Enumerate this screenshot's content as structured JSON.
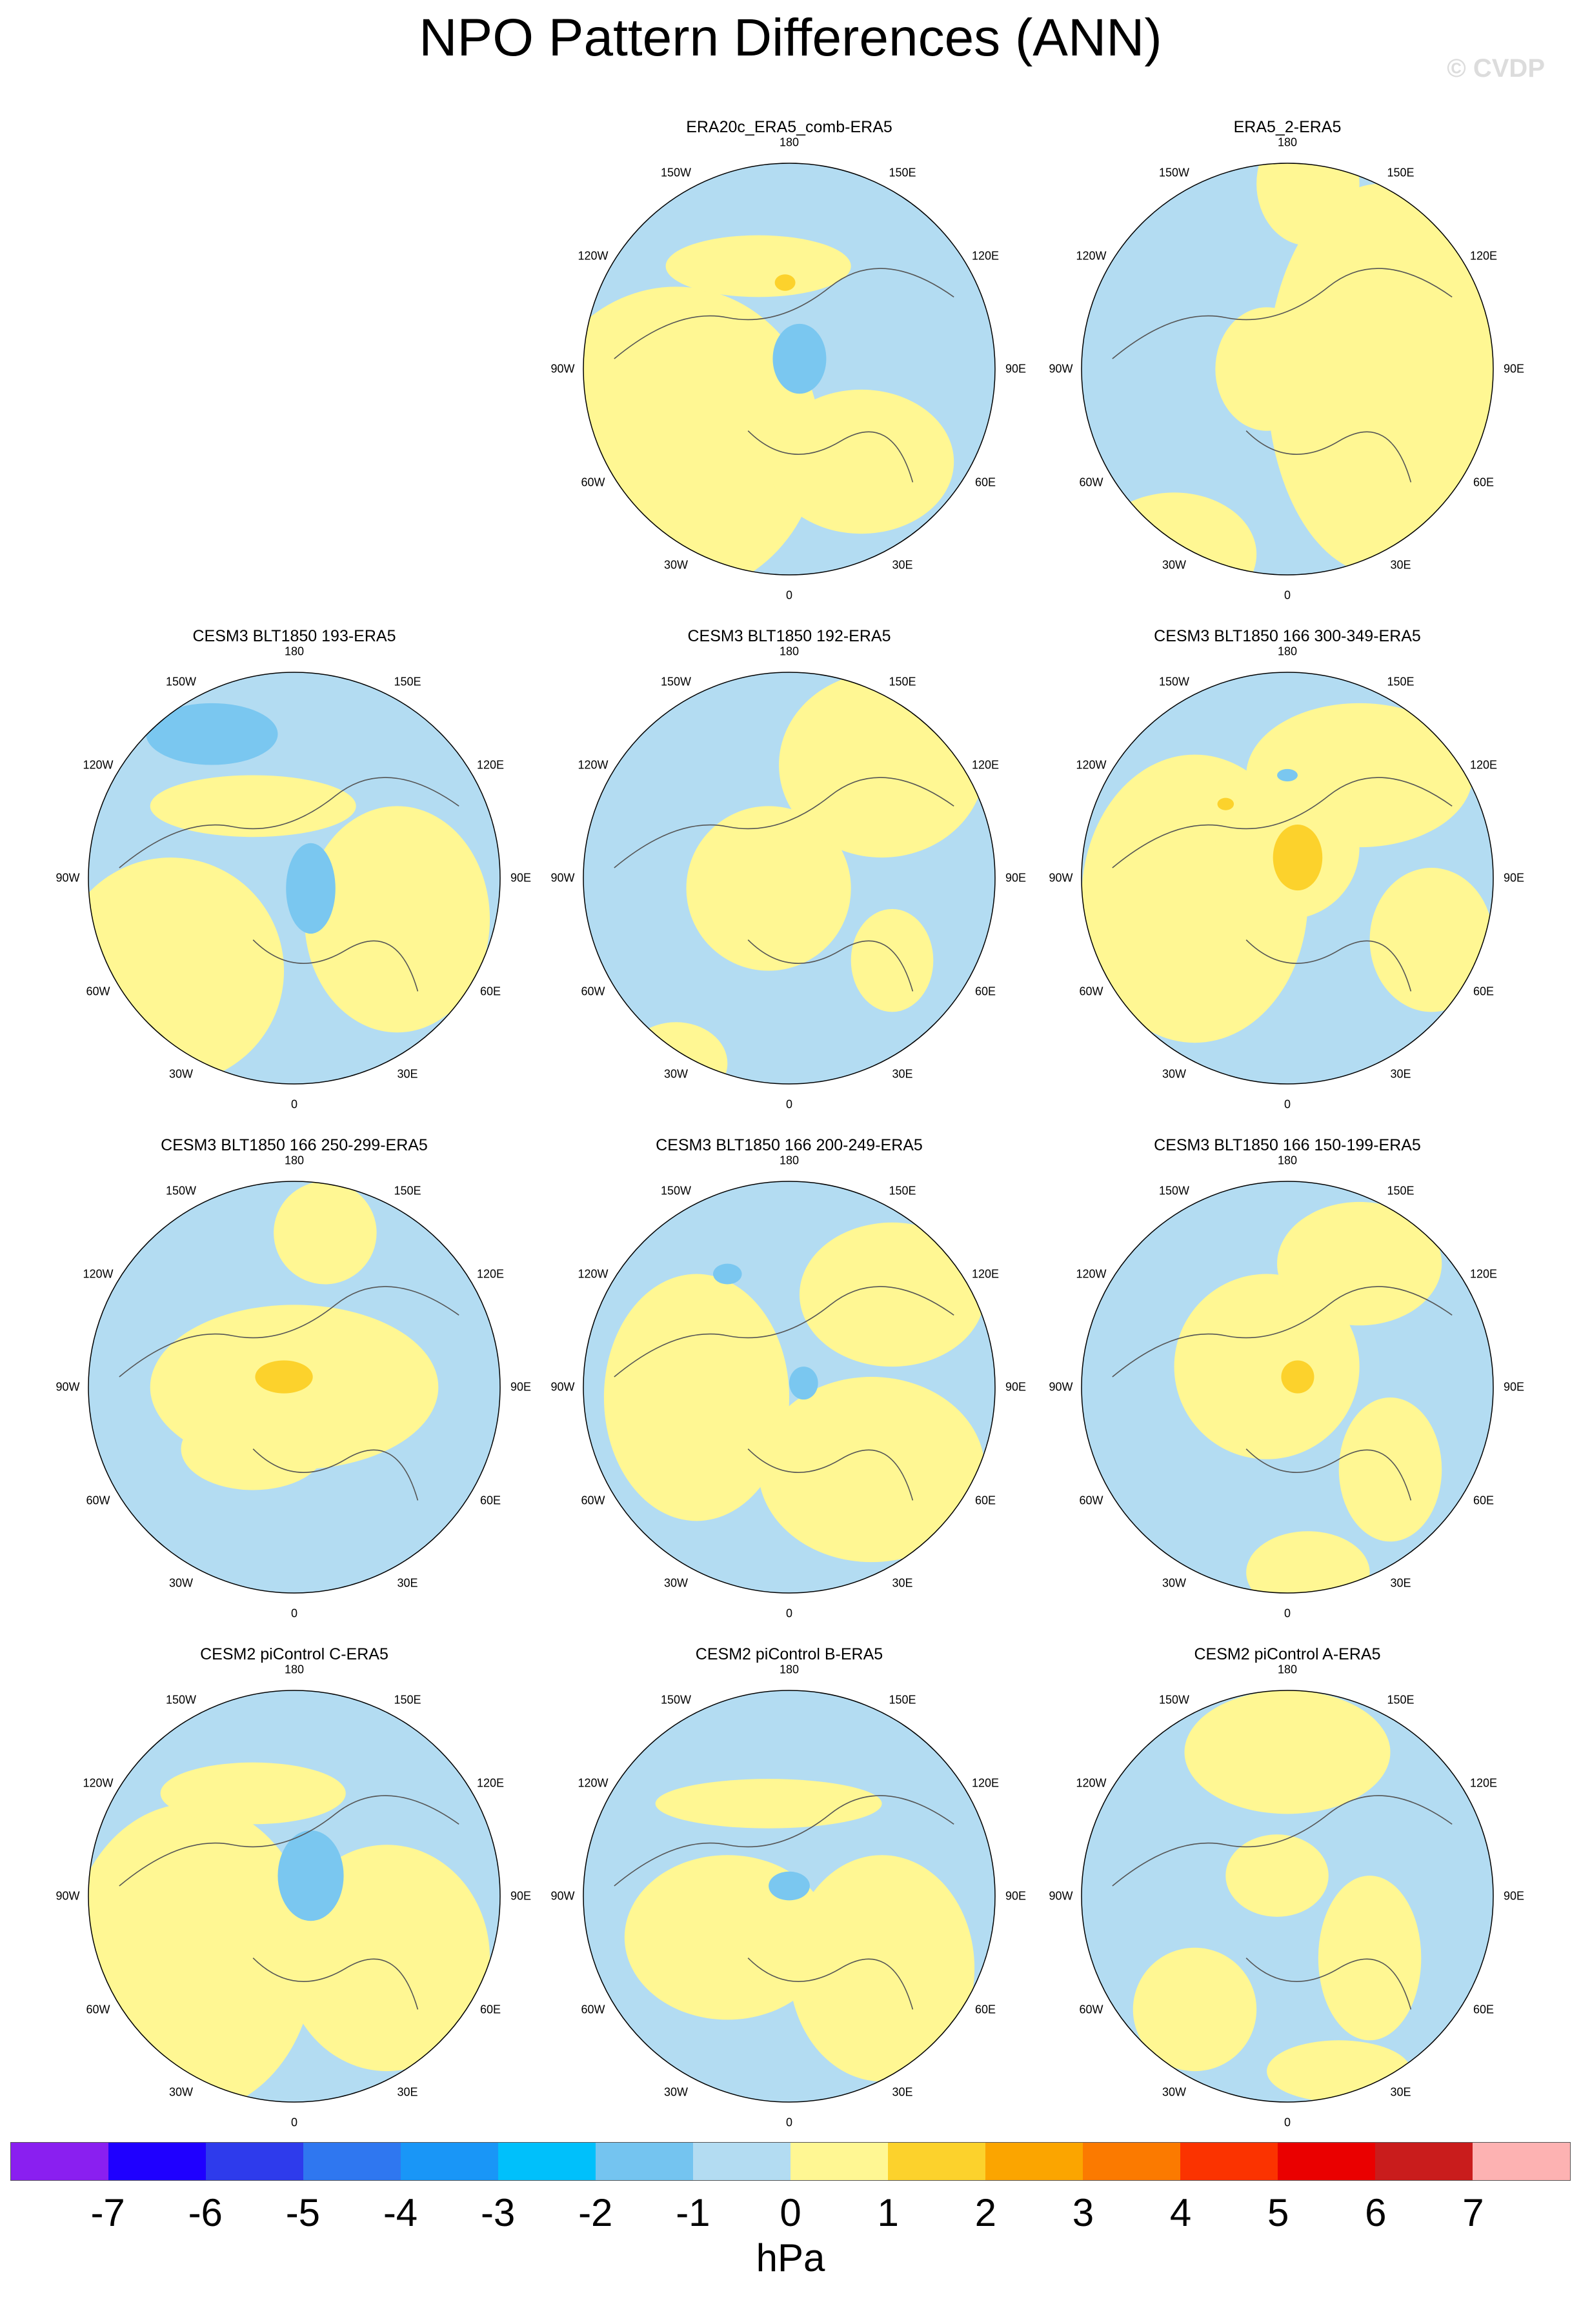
{
  "title": "NPO Pattern Differences (ANN)",
  "watermark": "© CVDP",
  "colors": {
    "neg1": "#b3dcf2",
    "neg2": "#7ac7f0",
    "neg3": "#4aa8ee",
    "pos1": "#fff793",
    "pos2": "#fcd22c",
    "ocean": "#b3dcf2",
    "coast": "#555555"
  },
  "lon_labels": [
    "180",
    "150E",
    "120E",
    "90E",
    "60E",
    "30E",
    "0",
    "30W",
    "60W",
    "90W",
    "120W",
    "150W"
  ],
  "chart_data": {
    "type": "map",
    "projection": "north-polar-stereographic",
    "variable": "NPO pattern difference",
    "season": "ANN",
    "units": "hPa",
    "panels": [
      {
        "title": "ERA20c_ERA5_comb-ERA5",
        "position": "row1-col2"
      },
      {
        "title": "ERA5_2-ERA5",
        "position": "row1-col3"
      },
      {
        "title": "CESM3 BLT1850 193-ERA5",
        "position": "row2-col1"
      },
      {
        "title": "CESM3 BLT1850 192-ERA5",
        "position": "row2-col2"
      },
      {
        "title": "CESM3 BLT1850 166 300-349-ERA5",
        "position": "row2-col3"
      },
      {
        "title": "CESM3 BLT1850 166 250-299-ERA5",
        "position": "row3-col1"
      },
      {
        "title": "CESM3 BLT1850 166 200-249-ERA5",
        "position": "row3-col2"
      },
      {
        "title": "CESM3 BLT1850 166 150-199-ERA5",
        "position": "row3-col3"
      },
      {
        "title": "CESM2 piControl C-ERA5",
        "position": "row4-col1"
      },
      {
        "title": "CESM2 piControl B-ERA5",
        "position": "row4-col2"
      },
      {
        "title": "CESM2 piControl A-ERA5",
        "position": "row4-col3"
      }
    ],
    "colorbar": {
      "label": "hPa",
      "ticks": [
        "-7",
        "-6",
        "-5",
        "-4",
        "-3",
        "-2",
        "-1",
        "0",
        "1",
        "2",
        "3",
        "4",
        "5",
        "6",
        "7"
      ],
      "colors": [
        "#8a1ff0",
        "#1f00ff",
        "#2e3bec",
        "#2f77f0",
        "#1996f7",
        "#00c0fb",
        "#74c4f0",
        "#b3dcf2",
        "#fff793",
        "#fcd22c",
        "#fba500",
        "#fb7a00",
        "#fb3300",
        "#ea0000",
        "#c91c1c",
        "#fdb2b2"
      ]
    }
  }
}
